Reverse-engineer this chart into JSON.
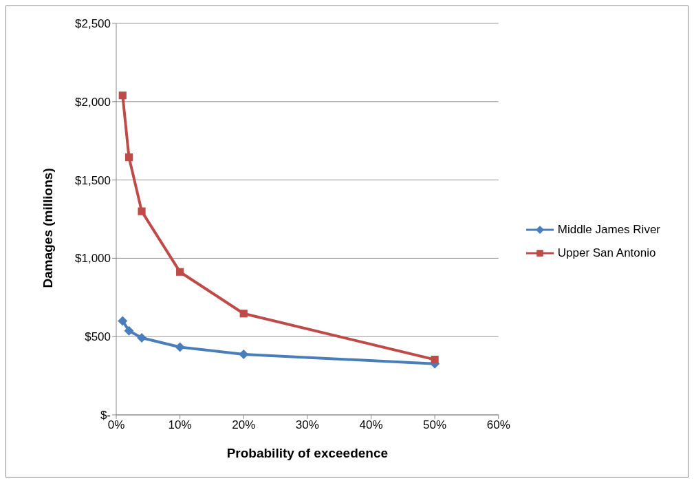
{
  "chart_data": {
    "type": "line",
    "xlabel": "Probability of exceedence",
    "ylabel": "Damages (millions)",
    "xlim": [
      0,
      60
    ],
    "xticks": [
      {
        "value": 0,
        "label": "0%"
      },
      {
        "value": 10,
        "label": "10%"
      },
      {
        "value": 20,
        "label": "20%"
      },
      {
        "value": 30,
        "label": "30%"
      },
      {
        "value": 40,
        "label": "40%"
      },
      {
        "value": 50,
        "label": "50%"
      },
      {
        "value": 60,
        "label": "60%"
      }
    ],
    "ylim": [
      0,
      2500
    ],
    "yticks": [
      {
        "value": 0,
        "label": "$-"
      },
      {
        "value": 500,
        "label": "$500"
      },
      {
        "value": 1000,
        "label": "$1,000"
      },
      {
        "value": 1500,
        "label": "$1,500"
      },
      {
        "value": 2000,
        "label": "$2,000"
      },
      {
        "value": 2500,
        "label": "$2,500"
      }
    ],
    "grid": "y",
    "legend": "right",
    "series": [
      {
        "name": "Middle James River",
        "color": "#4a7ebb",
        "marker": "diamond",
        "x": [
          1,
          2,
          4,
          10,
          20,
          50
        ],
        "values": [
          600,
          537,
          492,
          433,
          387,
          326
        ]
      },
      {
        "name": "Upper San Antonio",
        "color": "#be4b48",
        "marker": "square",
        "x": [
          1,
          2,
          4,
          10,
          20,
          50
        ],
        "values": [
          2040,
          1645,
          1300,
          913,
          647,
          353
        ]
      }
    ]
  }
}
